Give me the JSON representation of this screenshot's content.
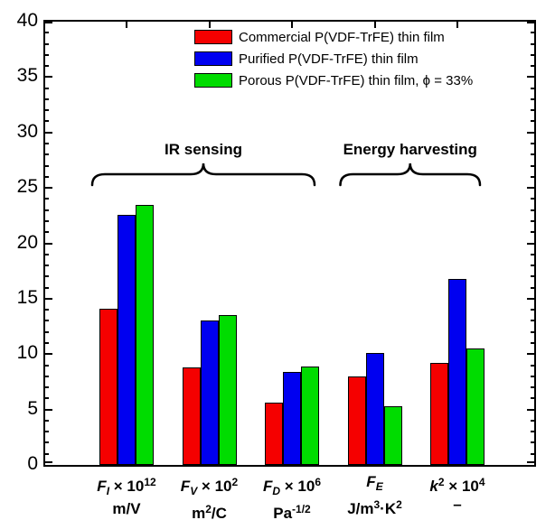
{
  "chart_data": {
    "type": "bar",
    "title": "",
    "xlabel": "",
    "ylabel": "",
    "ylim": [
      0,
      40
    ],
    "ytick_step": 5,
    "yminor_step": 1,
    "grid": false,
    "legend_position": "top-inside",
    "categories": [
      "F_I × 10^12 (m/V)",
      "F_V × 10^2 (m^2/C)",
      "F_D × 10^6 (Pa^-1/2)",
      "F_E (J/m^3·K^2)",
      "k^2 × 10^4 (–)"
    ],
    "xlabel_tokens": [
      {
        "line1": [
          [
            "bi",
            "F"
          ],
          [
            "sub",
            "I"
          ],
          [
            "b",
            " × 10"
          ],
          [
            "sup",
            "12"
          ]
        ],
        "line2": [
          [
            "b",
            "m/V"
          ]
        ]
      },
      {
        "line1": [
          [
            "bi",
            "F"
          ],
          [
            "sub",
            "V"
          ],
          [
            "b",
            " × 10"
          ],
          [
            "sup",
            "2"
          ]
        ],
        "line2": [
          [
            "b",
            "m"
          ],
          [
            "sup",
            "2"
          ],
          [
            "b",
            "/C"
          ]
        ]
      },
      {
        "line1": [
          [
            "bi",
            "F"
          ],
          [
            "sub",
            "D"
          ],
          [
            "b",
            " × 10"
          ],
          [
            "sup",
            "6"
          ]
        ],
        "line2": [
          [
            "b",
            "Pa"
          ],
          [
            "sup",
            "-1/2"
          ]
        ]
      },
      {
        "line1": [
          [
            "bi",
            "F"
          ],
          [
            "sub",
            "E"
          ]
        ],
        "line2": [
          [
            "b",
            "J/m"
          ],
          [
            "sup",
            "3"
          ],
          [
            "b",
            "·K"
          ],
          [
            "sup",
            "2"
          ]
        ]
      },
      {
        "line1": [
          [
            "bi",
            "k"
          ],
          [
            "sup",
            "2"
          ],
          [
            "b",
            " × 10"
          ],
          [
            "sup",
            "4"
          ]
        ],
        "line2": [
          [
            "b",
            "–"
          ]
        ]
      }
    ],
    "series": [
      {
        "name": "Commercial P(VDF-TrFE) thin film",
        "color": "#f50000",
        "values": [
          14.1,
          8.8,
          5.6,
          8.0,
          9.2
        ]
      },
      {
        "name": "Purified P(VDF-TrFE) thin film",
        "color": "#0000f0",
        "values": [
          22.6,
          13.0,
          8.4,
          10.1,
          16.8
        ]
      },
      {
        "name": "Porous P(VDF-TrFE) thin film, ϕ = 33%",
        "color": "#00dc00",
        "values": [
          23.5,
          13.5,
          8.9,
          5.3,
          10.5
        ]
      }
    ],
    "annotations": [
      {
        "label": "IR sensing",
        "first_category": 0,
        "last_category": 2
      },
      {
        "label": "Energy harvesting",
        "first_category": 3,
        "last_category": 4
      }
    ],
    "axis_color": "#000000",
    "background_color": "#ffffff"
  }
}
